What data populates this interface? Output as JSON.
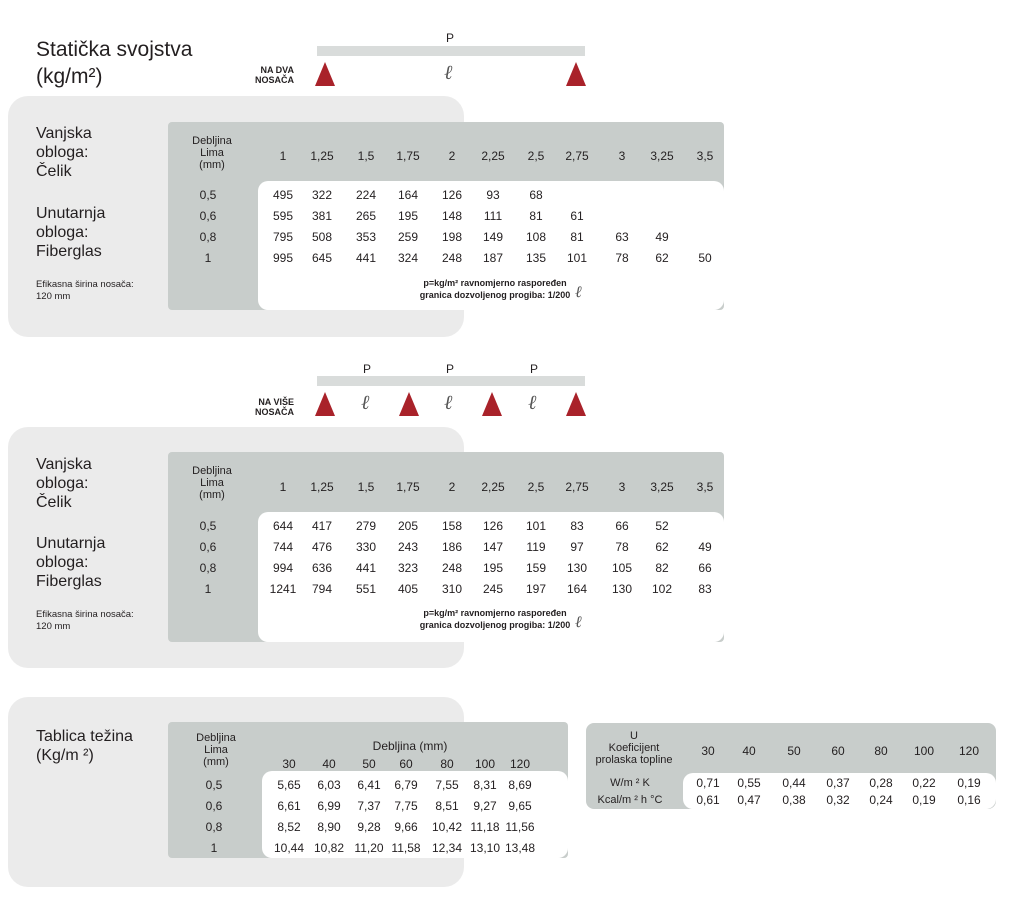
{
  "title_line1": "Statička svojstva",
  "title_line2": "(kg/m²)",
  "diagram1": {
    "support_label": "NA DVA\nNOSAČA",
    "loads": [
      "P"
    ],
    "spans": [
      "ℓ"
    ]
  },
  "diagram2": {
    "support_label": "NA VIŠE\nNOSAČA",
    "loads": [
      "P",
      "P",
      "P"
    ],
    "spans": [
      "ℓ",
      "ℓ",
      "ℓ"
    ]
  },
  "side": {
    "outer": "Vanjska\nobloga:\nČelik",
    "inner": "Unutarnja\nobloga:\nFiberglas",
    "width": "Efikasna širina nosača:\n120 mm"
  },
  "table1": {
    "header_label": "Debljina\nLima\n(mm)",
    "spans": [
      "1",
      "1,25",
      "1,5",
      "1,75",
      "2",
      "2,25",
      "2,5",
      "2,75",
      "3",
      "3,25",
      "3,5"
    ],
    "rows": [
      {
        "t": "0,5",
        "v": [
          "495",
          "322",
          "224",
          "164",
          "126",
          "93",
          "68",
          "",
          "",
          "",
          ""
        ]
      },
      {
        "t": "0,6",
        "v": [
          "595",
          "381",
          "265",
          "195",
          "148",
          "111",
          "81",
          "61",
          "",
          "",
          ""
        ]
      },
      {
        "t": "0,8",
        "v": [
          "795",
          "508",
          "353",
          "259",
          "198",
          "149",
          "108",
          "81",
          "63",
          "49",
          ""
        ]
      },
      {
        "t": "1",
        "v": [
          "995",
          "645",
          "441",
          "324",
          "248",
          "187",
          "135",
          "101",
          "78",
          "62",
          "50"
        ]
      }
    ],
    "note1": "p=kg/m² ravnomjerno raspoređen",
    "note2": "granica dozvoljenog progiba: 1/200",
    "note_sym": "ℓ"
  },
  "table2": {
    "header_label": "Debljina\nLima\n(mm)",
    "spans": [
      "1",
      "1,25",
      "1,5",
      "1,75",
      "2",
      "2,25",
      "2,5",
      "2,75",
      "3",
      "3,25",
      "3,5"
    ],
    "rows": [
      {
        "t": "0,5",
        "v": [
          "644",
          "417",
          "279",
          "205",
          "158",
          "126",
          "101",
          "83",
          "66",
          "52",
          ""
        ]
      },
      {
        "t": "0,6",
        "v": [
          "744",
          "476",
          "330",
          "243",
          "186",
          "147",
          "119",
          "97",
          "78",
          "62",
          "49"
        ]
      },
      {
        "t": "0,8",
        "v": [
          "994",
          "636",
          "441",
          "323",
          "248",
          "195",
          "159",
          "130",
          "105",
          "82",
          "66"
        ]
      },
      {
        "t": "1",
        "v": [
          "1241",
          "794",
          "551",
          "405",
          "310",
          "245",
          "197",
          "164",
          "130",
          "102",
          "83"
        ]
      }
    ],
    "note1": "p=kg/m² ravnomjerno raspoređen",
    "note2": "granica dozvoljenog progiba: 1/200",
    "note_sym": "ℓ"
  },
  "weights": {
    "title": "Tablica težina\n(Kg/m ²)",
    "header_label": "Debljina\nLima\n(mm)",
    "thickness_header": "Debljina (mm)",
    "cols": [
      "30",
      "40",
      "50",
      "60",
      "80",
      "100",
      "120"
    ],
    "rows": [
      {
        "t": "0,5",
        "v": [
          "5,65",
          "6,03",
          "6,41",
          "6,79",
          "7,55",
          "8,31",
          "8,69"
        ]
      },
      {
        "t": "0,6",
        "v": [
          "6,61",
          "6,99",
          "7,37",
          "7,75",
          "8,51",
          "9,27",
          "9,65"
        ]
      },
      {
        "t": "0,8",
        "v": [
          "8,52",
          "8,90",
          "9,28",
          "9,66",
          "10,42",
          "11,18",
          "11,56"
        ]
      },
      {
        "t": "1",
        "v": [
          "10,44",
          "10,82",
          "11,20",
          "11,58",
          "12,34",
          "13,10",
          "13,48"
        ]
      }
    ]
  },
  "uvalue": {
    "header_label": "U\nKoeficijent\nprolaska topline",
    "cols": [
      "30",
      "40",
      "50",
      "60",
      "80",
      "100",
      "120"
    ],
    "rows": [
      {
        "t": "W/m ² K",
        "v": [
          "0,71",
          "0,55",
          "0,44",
          "0,37",
          "0,28",
          "0,22",
          "0,19"
        ]
      },
      {
        "t": "Kcal/m ² h °C",
        "v": [
          "0,61",
          "0,47",
          "0,38",
          "0,32",
          "0,24",
          "0,19",
          "0,16"
        ]
      }
    ]
  },
  "colors": {
    "panel": "#ebebeb",
    "table": "#c8cdcb",
    "support": "#a9222a"
  }
}
